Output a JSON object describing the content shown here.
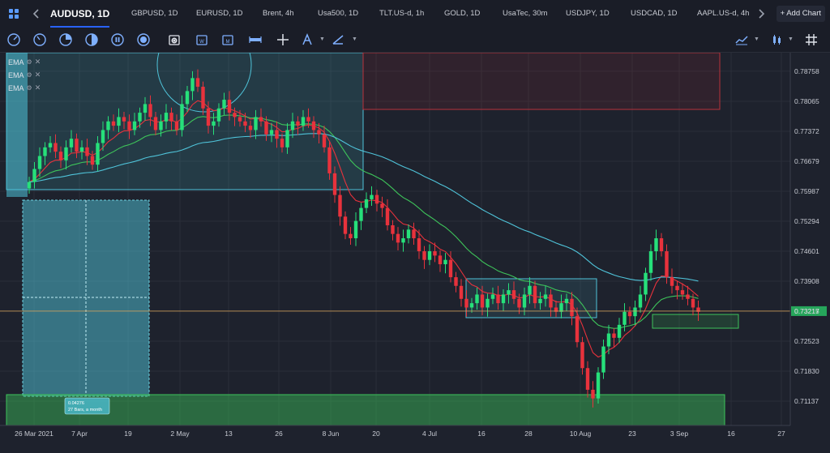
{
  "tabs": [
    {
      "label": "AUDUSD, 1D",
      "active": true
    },
    {
      "label": "GBPUSD, 1D"
    },
    {
      "label": "EURUSD, 1D"
    },
    {
      "label": "Brent, 4h"
    },
    {
      "label": "Usa500, 1D"
    },
    {
      "label": "TLT.US-d, 1h"
    },
    {
      "label": "GOLD, 1D"
    },
    {
      "label": "UsaTec, 30m"
    },
    {
      "label": "USDJPY, 1D"
    },
    {
      "label": "USDCAD, 1D"
    },
    {
      "label": "AAPL.US-d, 4h"
    }
  ],
  "add_chart_label": "+ Add Chart",
  "indicators": [
    {
      "label": "EMA"
    },
    {
      "label": "EMA"
    },
    {
      "label": "EMA"
    }
  ],
  "price_axis": {
    "labels": [
      "0.78758",
      "0.78065",
      "0.77372",
      "0.76679",
      "0.75987",
      "0.75294",
      "0.74601",
      "0.73908",
      "0.73215",
      "0.72523",
      "0.71830",
      "0.71137"
    ],
    "current_price": "0.73217"
  },
  "time_axis": {
    "labels": [
      "26 Mar 2021",
      "7 Apr",
      "19",
      "2 May",
      "13",
      "26",
      "8 Jun",
      "20",
      "4 Jul",
      "16",
      "28",
      "10 Aug",
      "23",
      "3 Sep",
      "16",
      "27"
    ]
  },
  "measure_label": {
    "line1": "0.04276",
    "line2": "27 Bars, a month"
  },
  "colors": {
    "up": "#26e07a",
    "down": "#e8323c",
    "ema_fast": "#e8323c",
    "ema_mid": "#3ec45a",
    "ema_slow": "#4fc3d9",
    "background": "#1e222d"
  },
  "chart_data": {
    "type": "candlestick",
    "x_start": "2021-03-26",
    "x_end": "2021-09-27",
    "ylim": [
      0.7095,
      0.79
    ],
    "close": [
      0.762,
      0.765,
      0.768,
      0.77,
      0.771,
      0.769,
      0.767,
      0.77,
      0.772,
      0.769,
      0.77,
      0.768,
      0.766,
      0.771,
      0.774,
      0.776,
      0.775,
      0.777,
      0.776,
      0.774,
      0.776,
      0.778,
      0.78,
      0.777,
      0.774,
      0.776,
      0.778,
      0.776,
      0.774,
      0.78,
      0.783,
      0.786,
      0.784,
      0.779,
      0.775,
      0.776,
      0.779,
      0.781,
      0.778,
      0.777,
      0.776,
      0.775,
      0.774,
      0.777,
      0.776,
      0.773,
      0.774,
      0.772,
      0.77,
      0.774,
      0.776,
      0.775,
      0.777,
      0.776,
      0.774,
      0.773,
      0.77,
      0.764,
      0.759,
      0.754,
      0.75,
      0.749,
      0.753,
      0.756,
      0.758,
      0.759,
      0.757,
      0.756,
      0.752,
      0.75,
      0.748,
      0.749,
      0.751,
      0.749,
      0.746,
      0.744,
      0.746,
      0.745,
      0.743,
      0.744,
      0.74,
      0.738,
      0.735,
      0.733,
      0.734,
      0.736,
      0.733,
      0.735,
      0.736,
      0.734,
      0.736,
      0.737,
      0.735,
      0.733,
      0.736,
      0.738,
      0.734,
      0.735,
      0.736,
      0.733,
      0.732,
      0.734,
      0.735,
      0.731,
      0.725,
      0.719,
      0.714,
      0.712,
      0.718,
      0.724,
      0.727,
      0.726,
      0.729,
      0.732,
      0.731,
      0.733,
      0.736,
      0.741,
      0.746,
      0.749,
      0.746,
      0.74,
      0.738,
      0.737,
      0.736,
      0.735,
      0.733,
      0.732
    ]
  }
}
